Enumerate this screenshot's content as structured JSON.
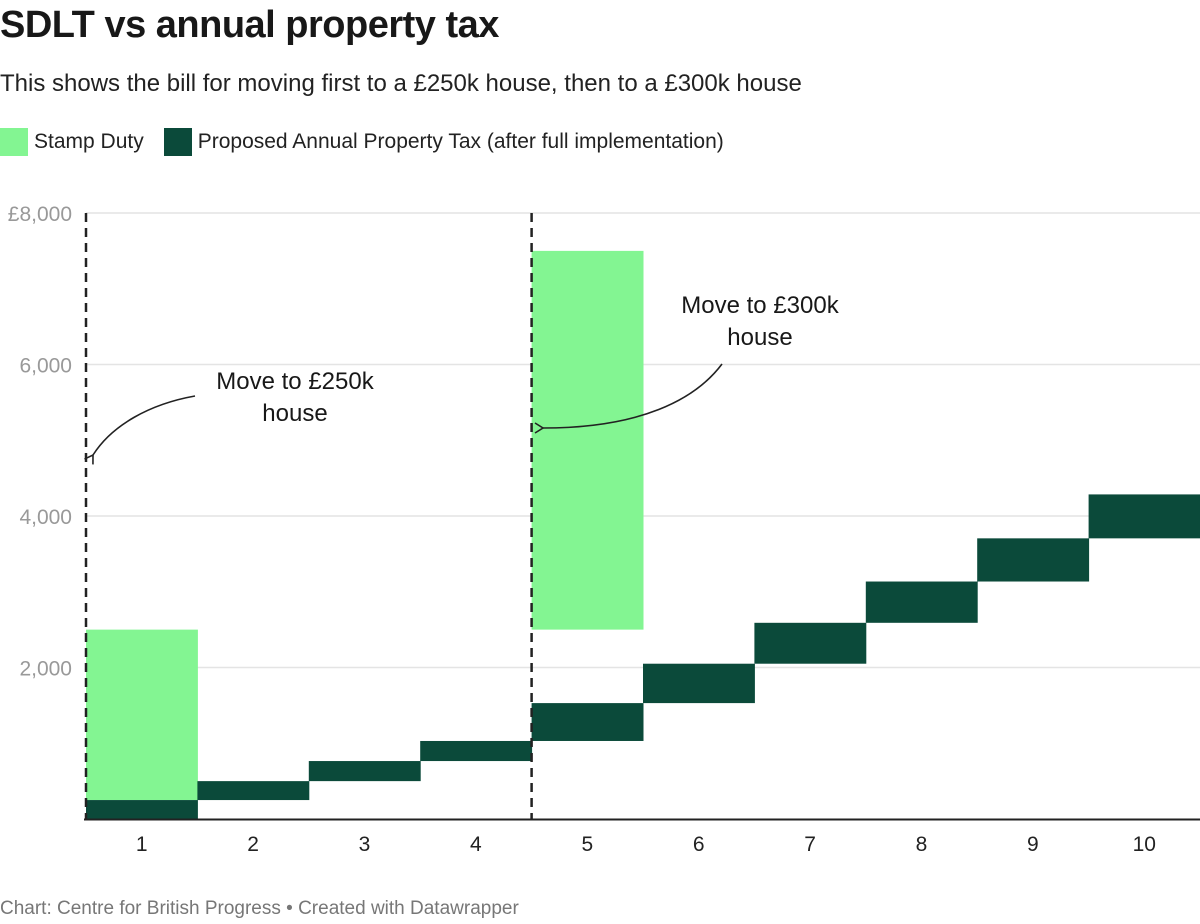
{
  "title": "SDLT vs annual property tax",
  "subtitle": "This shows the bill for moving first to a £250k house, then to a £300k house",
  "footer": "Chart: Centre for British Progress • Created with Datawrapper",
  "colors": {
    "stamp_duty": "#83f592",
    "property_tax": "#0b4a3a",
    "grid": "#e4e4e4",
    "axis_label": "#999999"
  },
  "chart_data": {
    "type": "bar",
    "subtype": "floating-range (waterfall-style)",
    "title": "SDLT vs annual property tax",
    "xlabel": "",
    "ylabel": "",
    "categories": [
      "1",
      "2",
      "3",
      "4",
      "5",
      "6",
      "7",
      "8",
      "9",
      "10"
    ],
    "ylim": [
      0,
      8000
    ],
    "y_ticks": [
      {
        "value": 2000,
        "label": "2,000"
      },
      {
        "value": 4000,
        "label": "4,000"
      },
      {
        "value": 6000,
        "label": "6,000"
      },
      {
        "value": 8000,
        "label": "£8,000"
      }
    ],
    "grid": true,
    "legend_position": "top-left",
    "series": [
      {
        "name": "Stamp Duty",
        "color": "#83f592",
        "ranges": [
          [
            250,
            2500
          ],
          null,
          null,
          null,
          [
            2500,
            7500
          ],
          null,
          null,
          null,
          null,
          null
        ]
      },
      {
        "name": "Proposed Annual Property Tax (after full implementation)",
        "color": "#0b4a3a",
        "ranges": [
          [
            0,
            250
          ],
          [
            250,
            500
          ],
          [
            500,
            765
          ],
          [
            765,
            1030
          ],
          [
            1030,
            1530
          ],
          [
            1530,
            2050
          ],
          [
            2050,
            2590
          ],
          [
            2590,
            3135
          ],
          [
            3135,
            3705
          ],
          [
            3705,
            4285
          ]
        ]
      }
    ],
    "markers": [
      {
        "category": "1",
        "position": "before",
        "style": "dashed"
      },
      {
        "category": "5",
        "position": "before",
        "style": "dashed"
      }
    ],
    "annotations": [
      {
        "lines": [
          "Move to £250k",
          "house"
        ]
      },
      {
        "lines": [
          "Move to £300k",
          "house"
        ]
      }
    ]
  }
}
